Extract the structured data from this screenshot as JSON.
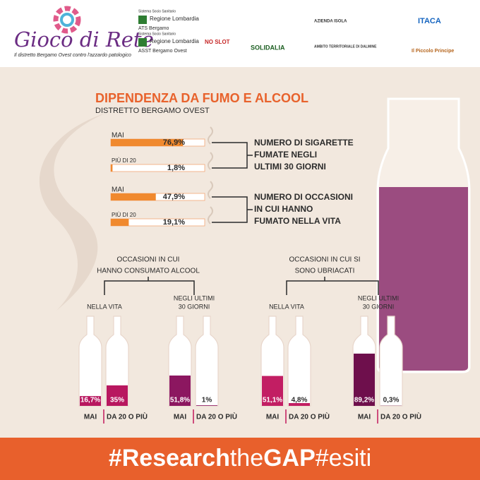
{
  "header": {
    "logo_title": "Gioco di Rete",
    "logo_subtitle": "Il distretto Bergamo Ovest contro l'azzardo patologico",
    "partners": [
      {
        "small": "Sistema Socio Sanitario",
        "name": "Regione Lombardia",
        "sub": "ATS Bergamo"
      },
      {
        "small": "Sistema Socio Sanitario",
        "name": "Regione Lombardia",
        "sub": "ASST Bergamo Ovest"
      }
    ],
    "logos": [
      "NO SLOT",
      "SOLIDALIA",
      "AMBITO TERRITORIALE DI DALMINE",
      "AZIENDA ISOLA",
      "ITACA",
      "Il Piccolo Principe"
    ]
  },
  "title": "DIPENDENZA DA FUMO E ALCOOL",
  "subtitle": "DISTRETTO BERGAMO OVEST",
  "smoking": [
    {
      "lines": [
        "NUMERO DI SIGARETTE",
        "FUMATE NEGLI",
        "ULTIMI 30 GIORNI"
      ],
      "rows": [
        {
          "name": "MAI",
          "value": 76.9,
          "value_label": "76,9%"
        },
        {
          "name": "PIÙ DI 20",
          "value": 1.8,
          "value_label": "1,8%"
        }
      ]
    },
    {
      "lines": [
        "NUMERO DI OCCASIONI",
        "IN CUI HANNO",
        "FUMATO NELLA VITA"
      ],
      "rows": [
        {
          "name": "MAI",
          "value": 47.9,
          "value_label": "47,9%"
        },
        {
          "name": "PIÙ DI 20",
          "value": 19.1,
          "value_label": "19,1%"
        }
      ]
    }
  ],
  "alcohol": [
    {
      "lines": [
        "OCCASIONI IN CUI",
        "HANNO CONSUMATO ALCOOL"
      ],
      "groups": [
        {
          "lines": [
            "NELLA VITA"
          ],
          "color": "#b8175f",
          "bottles": [
            {
              "name": "MAI",
              "value": 16.7,
              "value_label": "16,7%"
            },
            {
              "name": "DA 20 O PIÙ",
              "value": 35,
              "value_label": "35%"
            }
          ]
        },
        {
          "lines": [
            "NEGLI ULTIMI",
            "30 GIORNI"
          ],
          "color": "#8c1760",
          "bottles": [
            {
              "name": "MAI",
              "value": 51.8,
              "value_label": "51,8%"
            },
            {
              "name": "DA 20 O PIÙ",
              "value": 1,
              "value_label": "1%"
            }
          ]
        }
      ]
    },
    {
      "lines": [
        "OCCASIONI IN CUI SI",
        "SONO UBRIACATI"
      ],
      "groups": [
        {
          "lines": [
            "NELLA VITA"
          ],
          "color": "#c21e63",
          "bottles": [
            {
              "name": "MAI",
              "value": 51.1,
              "value_label": "51,1%"
            },
            {
              "name": "DA 20 O PIÙ",
              "value": 4.8,
              "value_label": "4,8%"
            }
          ]
        },
        {
          "lines": [
            "NEGLI ULTIMI",
            "30 GIORNI"
          ],
          "color": "#6e0f4c",
          "bottles": [
            {
              "name": "MAI",
              "value": 89.2,
              "value_label": "89,2%"
            },
            {
              "name": "DA 20 O PIÙ",
              "value": 0.3,
              "value_label": "0,3%"
            }
          ]
        }
      ]
    }
  ],
  "footer": [
    {
      "text": "#Research",
      "bold": true
    },
    {
      "text": "the",
      "bold": false
    },
    {
      "text": "GAP",
      "bold": true
    },
    {
      "text": "#esiti",
      "bold": false
    }
  ]
}
